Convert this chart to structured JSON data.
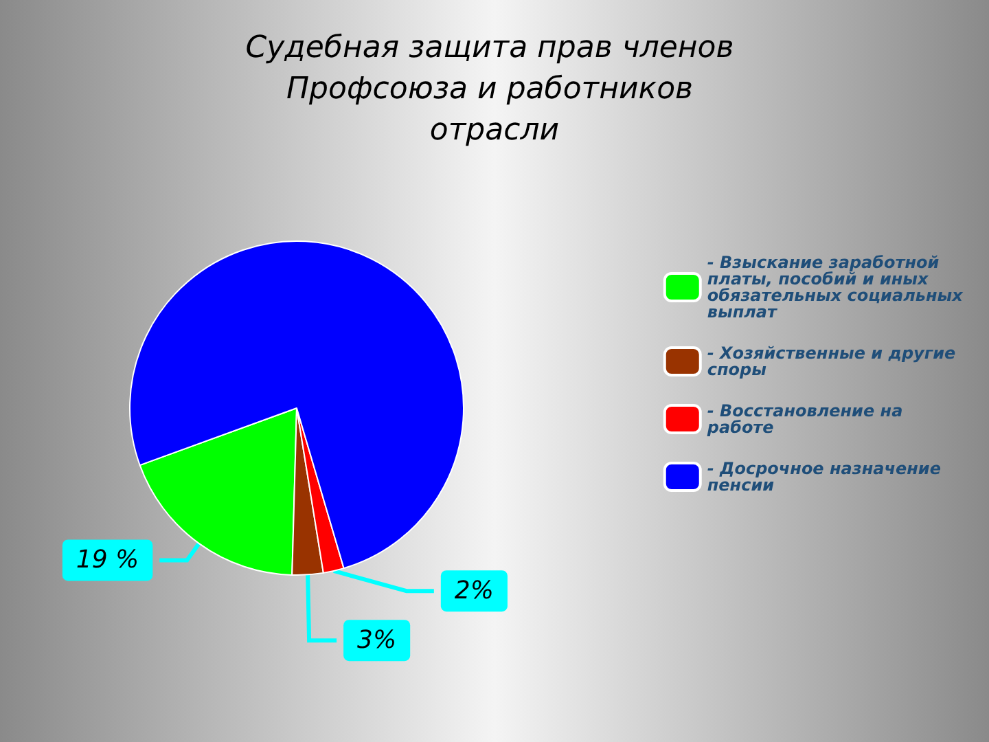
{
  "chart_data": {
    "type": "pie",
    "title": "Судебная защита прав членов Профсоюза и работников отрасли",
    "categories": [
      "- Взыскание заработной платы, пособий и иных обязательных социальных выплат",
      "- Хозяйственные и другие споры",
      "- Восстановление на работе",
      "- Досрочное назначение пенсии"
    ],
    "values": [
      19,
      3,
      2,
      76
    ],
    "colors": [
      "#00ff00",
      "#993300",
      "#ff0000",
      "#0000ff"
    ],
    "value_labels": [
      "19 %",
      "3%",
      "2%",
      null
    ],
    "legend": "right"
  }
}
